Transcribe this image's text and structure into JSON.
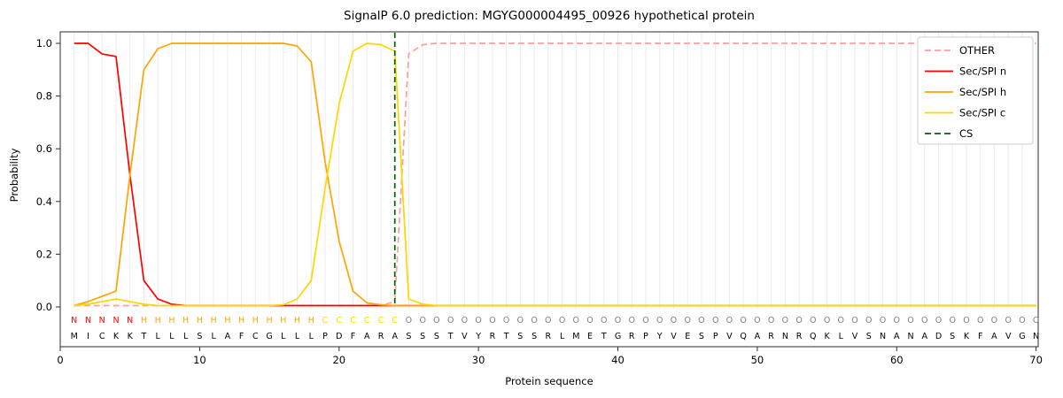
{
  "chart_data": {
    "type": "line",
    "title": "SignalP 6.0 prediction: MGYG000004495_00926 hypothetical protein",
    "xlabel": "Protein sequence",
    "ylabel": "Probability",
    "xlim": [
      0,
      70.15
    ],
    "ylim": [
      0,
      1.0
    ],
    "x_ticks": [
      0,
      10,
      20,
      30,
      40,
      50,
      60,
      70
    ],
    "y_tick_labels": [
      "0.0",
      "0.2",
      "0.4",
      "0.6",
      "0.8",
      "1.0"
    ],
    "grid": "vertical-per-residue",
    "legend_position": "upper right",
    "sequence": "MICKKTLLLSLAFCGLLLPDFARASSSTVYRTSSRLMETGRPYVESPVQARNRQKLVSNANADSKFAVGN",
    "regions": "NNNNNHHHHHHHHHHHHHCCCCCCOOOOOOOOOOOOOOOOOOOOOOOOOOOOOOOOOOOOOOOOOOOOOO",
    "region_colors": {
      "N": "#ff0000",
      "H": "#ffa500",
      "C": "#ffd700",
      "O": "#7f7f7f"
    },
    "cs_position": 24,
    "series": [
      {
        "name": "OTHER",
        "color": "#ff9e9e",
        "dash": true,
        "values": [
          0.005,
          0.005,
          0.005,
          0.005,
          0.005,
          0.005,
          0.005,
          0.005,
          0.005,
          0.005,
          0.005,
          0.005,
          0.005,
          0.005,
          0.005,
          0.005,
          0.005,
          0.005,
          0.005,
          0.005,
          0.005,
          0.005,
          0.005,
          0.02,
          0.96,
          0.995,
          1,
          1,
          1,
          1,
          1,
          1,
          1,
          1,
          1,
          1,
          1,
          1,
          1,
          1,
          1,
          1,
          1,
          1,
          1,
          1,
          1,
          1,
          1,
          1,
          1,
          1,
          1,
          1,
          1,
          1,
          1,
          1,
          1,
          1,
          1,
          1,
          1,
          1,
          1,
          1,
          1,
          1,
          1,
          1
        ]
      },
      {
        "name": "Sec/SPI n",
        "color": "#ff0000",
        "dash": false,
        "values": [
          1,
          1,
          0.96,
          0.95,
          0.5,
          0.1,
          0.03,
          0.01,
          0.005,
          0.005,
          0.005,
          0.005,
          0.005,
          0.005,
          0.005,
          0.005,
          0.005,
          0.005,
          0.005,
          0.005,
          0.005,
          0.005,
          0.005,
          0.005,
          0.005,
          0.005,
          0.005,
          0.005,
          0.005,
          0.005,
          0.005,
          0.005,
          0.005,
          0.005,
          0.005,
          0.005,
          0.005,
          0.005,
          0.005,
          0.005,
          0.005,
          0.005,
          0.005,
          0.005,
          0.005,
          0.005,
          0.005,
          0.005,
          0.005,
          0.005,
          0.005,
          0.005,
          0.005,
          0.005,
          0.005,
          0.005,
          0.005,
          0.005,
          0.005,
          0.005,
          0.005,
          0.005,
          0.005,
          0.005,
          0.005,
          0.005,
          0.005,
          0.005,
          0.005,
          0.005
        ]
      },
      {
        "name": "Sec/SPI h",
        "color": "#ffa500",
        "dash": false,
        "values": [
          0.005,
          0.02,
          0.04,
          0.06,
          0.5,
          0.9,
          0.98,
          1,
          1,
          1,
          1,
          1,
          1,
          1,
          1,
          1,
          0.99,
          0.93,
          0.55,
          0.25,
          0.06,
          0.015,
          0.008,
          0.005,
          0.005,
          0.005,
          0.005,
          0.005,
          0.005,
          0.005,
          0.005,
          0.005,
          0.005,
          0.005,
          0.005,
          0.005,
          0.005,
          0.005,
          0.005,
          0.005,
          0.005,
          0.005,
          0.005,
          0.005,
          0.005,
          0.005,
          0.005,
          0.005,
          0.005,
          0.005,
          0.005,
          0.005,
          0.005,
          0.005,
          0.005,
          0.005,
          0.005,
          0.005,
          0.005,
          0.005,
          0.005,
          0.005,
          0.005,
          0.005,
          0.005,
          0.005,
          0.005,
          0.005,
          0.005,
          0.005
        ]
      },
      {
        "name": "Sec/SPI c",
        "color": "#ffd700",
        "dash": false,
        "values": [
          0.005,
          0.01,
          0.02,
          0.03,
          0.02,
          0.01,
          0.005,
          0.005,
          0.005,
          0.005,
          0.005,
          0.005,
          0.005,
          0.005,
          0.005,
          0.008,
          0.03,
          0.1,
          0.45,
          0.77,
          0.97,
          1,
          0.995,
          0.97,
          0.03,
          0.01,
          0.005,
          0.005,
          0.005,
          0.005,
          0.005,
          0.005,
          0.005,
          0.005,
          0.005,
          0.005,
          0.005,
          0.005,
          0.005,
          0.005,
          0.005,
          0.005,
          0.005,
          0.005,
          0.005,
          0.005,
          0.005,
          0.005,
          0.005,
          0.005,
          0.005,
          0.005,
          0.005,
          0.005,
          0.005,
          0.005,
          0.005,
          0.005,
          0.005,
          0.005,
          0.005,
          0.005,
          0.005,
          0.005,
          0.005,
          0.005,
          0.005,
          0.005,
          0.005,
          0.005
        ]
      },
      {
        "name": "CS",
        "color": "#006400",
        "dash": true,
        "values": null
      }
    ]
  }
}
